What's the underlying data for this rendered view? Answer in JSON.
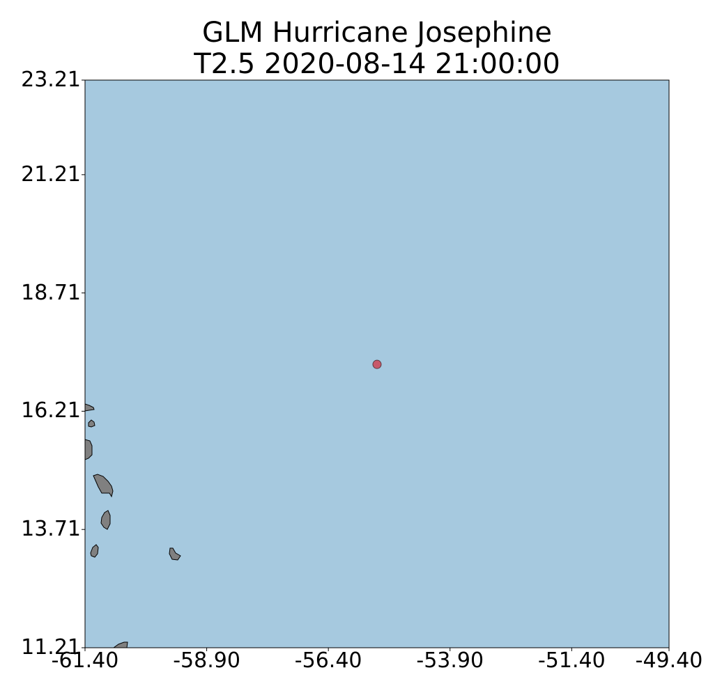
{
  "title": {
    "line1": "GLM Hurricane Josephine",
    "line2": "T2.5 2020-08-14 21:00:00"
  },
  "map": {
    "ocean_color": "#a6c9df",
    "land_color": "#808080",
    "extent": {
      "lon": [
        -61.4,
        -49.4
      ],
      "lat": [
        11.21,
        23.21
      ]
    },
    "storm_center": {
      "lon": -55.4,
      "lat": 17.2,
      "color": "#c8596a"
    }
  },
  "axes": {
    "x_ticks": [
      "-61.40",
      "-58.90",
      "-56.40",
      "-53.90",
      "-51.40",
      "-49.40"
    ],
    "y_ticks": [
      "23.21",
      "21.21",
      "18.71",
      "16.21",
      "13.71",
      "11.21"
    ]
  },
  "chart_data": {
    "type": "scatter",
    "title": "GLM Hurricane Josephine\nT2.5 2020-08-14 21:00:00",
    "xlabel": "",
    "ylabel": "",
    "xlim": [
      -61.4,
      -49.4
    ],
    "ylim": [
      11.21,
      23.21
    ],
    "x_ticks": [
      -61.4,
      -58.9,
      -56.4,
      -53.9,
      -51.4,
      -49.4
    ],
    "y_ticks": [
      23.21,
      21.21,
      18.71,
      16.21,
      13.71,
      11.21
    ],
    "points": [
      {
        "x": -55.4,
        "y": 17.2
      }
    ]
  }
}
